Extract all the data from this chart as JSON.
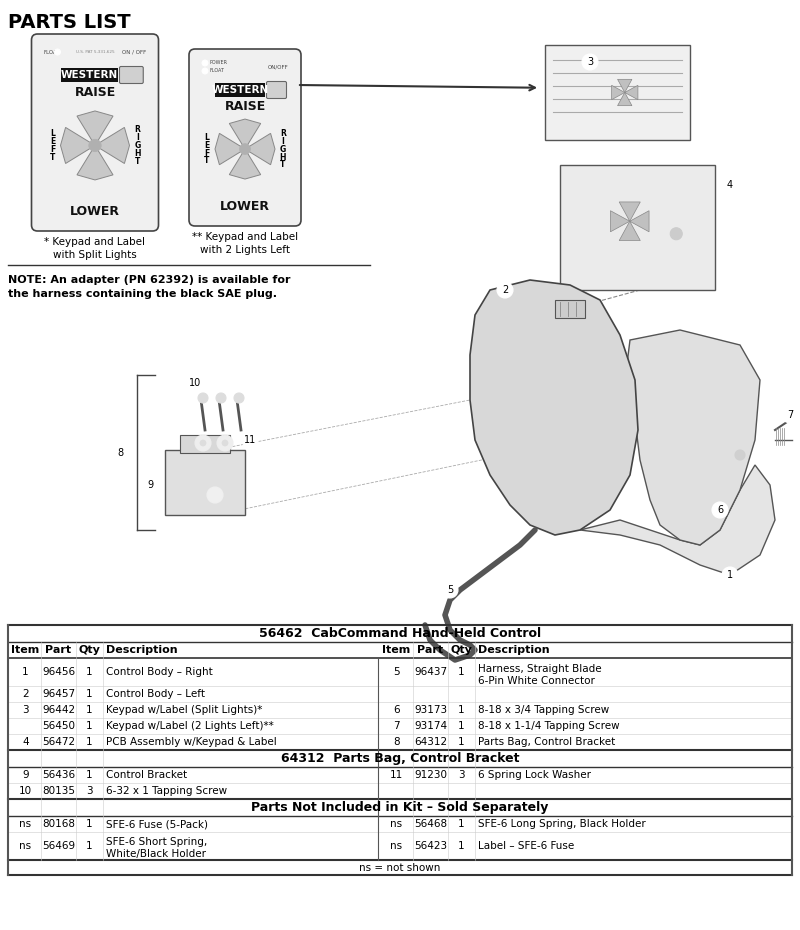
{
  "title": "PARTS LIST",
  "note_text": "NOTE: An adapter (PN 62392) is available for\nthe harness containing the black SAE plug.",
  "keypad1_label": "* Keypad and Label\nwith Split Lights",
  "keypad2_label": "** Keypad and Label\nwith 2 Lights Left",
  "table_title1": "56462  CabCommand Hand-Held Control",
  "table_title2": "64312  Parts Bag, Control Bracket",
  "table_title3": "Parts Not Included in Kit – Sold Separately",
  "table_footer": "ns = not shown",
  "header_row": [
    "Item",
    "Part",
    "Qty",
    "Description",
    "Item",
    "Part",
    "Qty",
    "Description"
  ],
  "data_rows": [
    [
      "1",
      "96456",
      "1",
      "Control Body – Right",
      "5",
      "96437",
      "1",
      "Harness, Straight Blade\n6-Pin White Connector"
    ],
    [
      "2",
      "96457",
      "1",
      "Control Body – Left",
      "",
      "",
      "",
      ""
    ],
    [
      "3",
      "96442",
      "1",
      "Keypad w/Label (Split Lights)*",
      "6",
      "93173",
      "1",
      "8-18 x 3/4 Tapping Screw"
    ],
    [
      "",
      "56450",
      "1",
      "Keypad w/Label (2 Lights Left)**",
      "7",
      "93174",
      "1",
      "8-18 x 1-1/4 Tapping Screw"
    ],
    [
      "4",
      "56472",
      "1",
      "PCB Assembly w/Keypad & Label",
      "8",
      "64312",
      "1",
      "Parts Bag, Control Bracket"
    ]
  ],
  "data_rows2": [
    [
      "9",
      "56436",
      "1",
      "Control Bracket",
      "11",
      "91230",
      "3",
      "6 Spring Lock Washer"
    ],
    [
      "10",
      "80135",
      "3",
      "6-32 x 1 Tapping Screw",
      "",
      "",
      "",
      ""
    ]
  ],
  "data_rows3": [
    [
      "ns",
      "80168",
      "1",
      "SFE-6 Fuse (5-Pack)",
      "ns",
      "56468",
      "1",
      "SFE-6 Long Spring, Black Holder"
    ],
    [
      "ns",
      "56469",
      "1",
      "SFE-6 Short Spring,\nWhite/Black Holder",
      "ns",
      "56423",
      "1",
      "Label – SFE-6 Fuse"
    ]
  ],
  "bg_color": "#ffffff",
  "text_color": "#000000"
}
